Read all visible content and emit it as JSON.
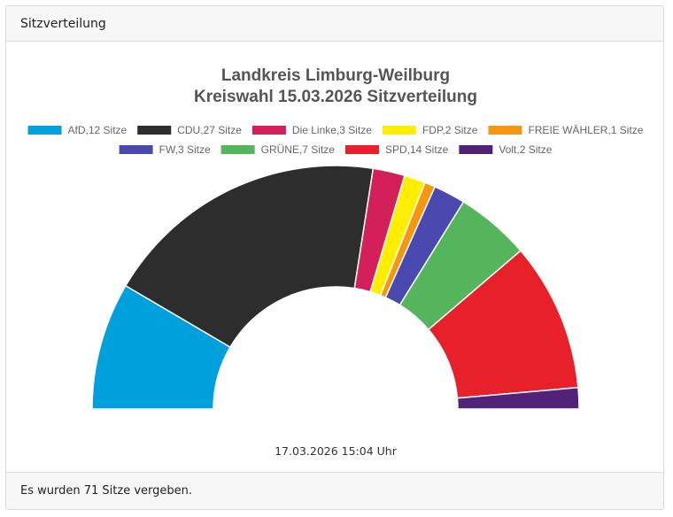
{
  "card": {
    "header_title": "Sitzverteilung",
    "footer_text": "Es wurden 71 Sitze vergeben."
  },
  "chart_data": {
    "type": "pie",
    "variant": "half-donut",
    "title": [
      "Landkreis Limburg-Weilburg",
      "Kreiswahl 15.03.2026 Sitzverteilung"
    ],
    "timestamp": "17.03.2026 15:04 Uhr",
    "total": 71,
    "series": [
      {
        "name": "AfD",
        "value": 12,
        "legend": "AfD,12 Sitze",
        "color": "#00a0dc"
      },
      {
        "name": "CDU",
        "value": 27,
        "legend": "CDU,27 Sitze",
        "color": "#2e2d2d"
      },
      {
        "name": "Die Linke",
        "value": 3,
        "legend": "Die Linke,3 Sitze",
        "color": "#d3205a"
      },
      {
        "name": "FDP",
        "value": 2,
        "legend": "FDP,2 Sitze",
        "color": "#ffee00"
      },
      {
        "name": "FREIE WÄHLER",
        "value": 1,
        "legend": "FREIE WÄHLER,1 Sitze",
        "color": "#f7960f"
      },
      {
        "name": "FW",
        "value": 3,
        "legend": "FW,3 Sitze",
        "color": "#4a49b0"
      },
      {
        "name": "GRÜNE",
        "value": 7,
        "legend": "GRÜNE,7 Sitze",
        "color": "#55b55c"
      },
      {
        "name": "SPD",
        "value": 14,
        "legend": "SPD,14 Sitze",
        "color": "#e8202a"
      },
      {
        "name": "Volt",
        "value": 2,
        "legend": "Volt,2 Sitze",
        "color": "#502379"
      }
    ],
    "legend_position": "top"
  }
}
